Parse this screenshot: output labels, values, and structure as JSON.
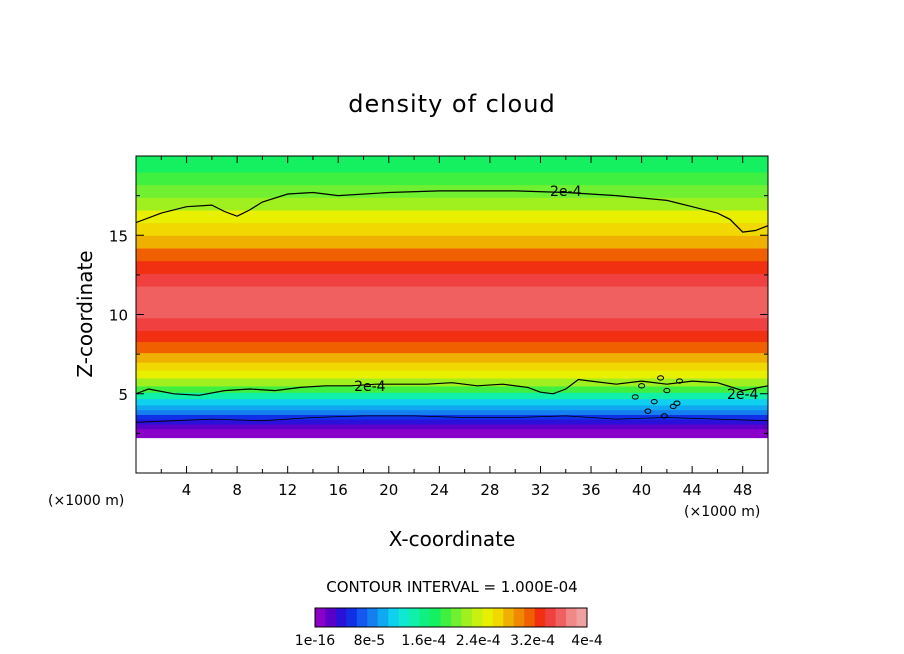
{
  "chart_data": {
    "type": "heatmap",
    "title": "density of cloud",
    "xlabel": "X-coordinate",
    "ylabel": "Z-coordinate",
    "x_unit": "(×1000 m)",
    "x_ticks": [
      4,
      8,
      12,
      16,
      20,
      24,
      28,
      32,
      36,
      40,
      44,
      48
    ],
    "y_ticks": [
      5,
      10,
      15
    ],
    "xlim": [
      0,
      50
    ],
    "ylim": [
      0,
      20
    ],
    "contour_interval_text": "CONTOUR INTERVAL = 1.000E-04",
    "contour_level_label": "2e-4",
    "colorbar": {
      "tick_labels": [
        "1e-16",
        "8e-5",
        "1.6e-4",
        "2.4e-4",
        "3.2e-4",
        "4e-4"
      ],
      "colors": [
        "#8a00c8",
        "#5a00c8",
        "#2a10d8",
        "#1030e8",
        "#1458f0",
        "#1480f0",
        "#10a8f0",
        "#10d0f0",
        "#10e8d0",
        "#10f0a8",
        "#10f080",
        "#14f060",
        "#40f040",
        "#70f030",
        "#a0f020",
        "#c8f010",
        "#e8f000",
        "#f0d800",
        "#f0b000",
        "#f08800",
        "#f06000",
        "#f03010",
        "#f04040",
        "#f06060",
        "#f08888",
        "#f0a0a0"
      ]
    },
    "profile": {
      "z": [
        2.5,
        2.8,
        3.1,
        3.4,
        3.7,
        4.0,
        4.3,
        4.7,
        5.1,
        5.5,
        6.0,
        6.5,
        7.0,
        7.6,
        8.3,
        9.0,
        9.8,
        11.8,
        12.6,
        13.4,
        14.2,
        15.0,
        15.8,
        16.6,
        17.4,
        18.2,
        19.0
      ],
      "density": [
        0.0,
        2e-05,
        4e-05,
        6e-05,
        8e-05,
        0.0001,
        0.00012,
        0.00015,
        0.00019,
        0.00022,
        0.00025,
        0.00027,
        0.00029,
        0.00031,
        0.00033,
        0.00035,
        0.00036,
        0.00035,
        0.00033,
        0.00031,
        0.00029,
        0.00027,
        0.00025,
        0.00023,
        0.00021,
        0.00019,
        0.00017
      ]
    },
    "contour_upper": {
      "x": [
        0,
        2,
        4,
        6,
        7,
        8,
        9,
        10,
        12,
        14,
        16,
        20,
        24,
        28,
        30,
        34,
        38,
        42,
        44,
        46,
        47,
        48,
        49,
        50
      ],
      "z": [
        15.8,
        16.4,
        16.8,
        16.9,
        16.5,
        16.2,
        16.6,
        17.1,
        17.6,
        17.7,
        17.5,
        17.7,
        17.8,
        17.8,
        17.8,
        17.7,
        17.5,
        17.2,
        16.8,
        16.4,
        16.0,
        15.2,
        15.3,
        15.6
      ]
    },
    "contour_lower": {
      "x": [
        0,
        1,
        3,
        5,
        7,
        9,
        11,
        13,
        15,
        17,
        19,
        21,
        23,
        25,
        27,
        29,
        31,
        32,
        33,
        34,
        35,
        36,
        38,
        40,
        42,
        44,
        46,
        48,
        50
      ],
      "z": [
        5.0,
        5.3,
        5.0,
        4.9,
        5.2,
        5.3,
        5.2,
        5.4,
        5.5,
        5.5,
        5.6,
        5.6,
        5.6,
        5.7,
        5.5,
        5.6,
        5.4,
        5.1,
        5.0,
        5.3,
        5.9,
        5.8,
        5.6,
        5.8,
        5.6,
        5.8,
        5.7,
        5.2,
        5.5
      ]
    },
    "contour_base": {
      "x": [
        0,
        3,
        6,
        10,
        14,
        18,
        22,
        26,
        30,
        34,
        38,
        42,
        46,
        50
      ],
      "z": [
        3.2,
        3.3,
        3.4,
        3.3,
        3.5,
        3.6,
        3.6,
        3.5,
        3.5,
        3.6,
        3.4,
        3.5,
        3.4,
        3.3
      ]
    },
    "scatter_contours": {
      "x": [
        39.5,
        40.0,
        41.0,
        41.5,
        42.0,
        42.5,
        43.0,
        40.5,
        41.8,
        42.8
      ],
      "z": [
        4.8,
        5.5,
        4.5,
        6.0,
        5.2,
        4.2,
        5.8,
        3.9,
        3.6,
        4.4
      ]
    }
  }
}
